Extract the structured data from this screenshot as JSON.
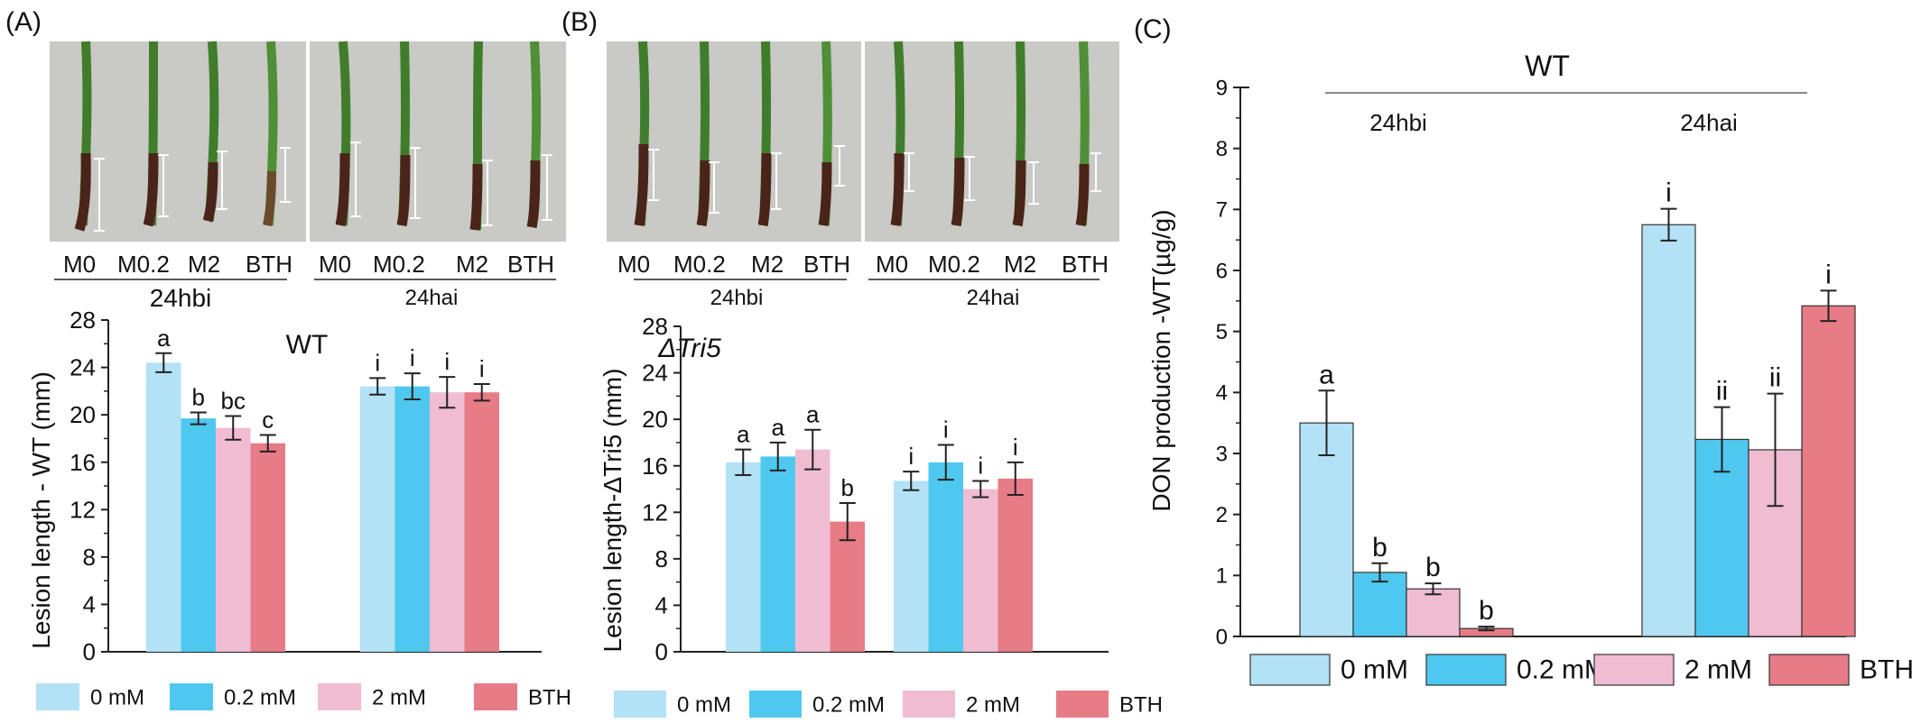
{
  "panels": {
    "A": "(A)",
    "B": "(B)",
    "C": "(C)"
  },
  "photos": {
    "A": {
      "left_labels": [
        "M0",
        "M0.2",
        "M2",
        "BTH"
      ],
      "right_labels": [
        "M0",
        "M0.2",
        "M2",
        "BTH"
      ],
      "left_group": "24hbi",
      "right_group": "24hai"
    },
    "B": {
      "left_labels": [
        "M0",
        "M0.2",
        "M2",
        "BTH"
      ],
      "right_labels": [
        "M0",
        "M0.2",
        "M2",
        "BTH"
      ],
      "left_group": "24hbi",
      "right_group": "24hai"
    }
  },
  "legend": [
    {
      "label": "0 mM",
      "color": "#b3e1f5"
    },
    {
      "label": "0.2 mM",
      "color": "#4fc8ef"
    },
    {
      "label": "2 mM",
      "color": "#f0bcd2"
    },
    {
      "label": "BTH",
      "color": "#e77b86"
    }
  ],
  "chart_data": [
    {
      "id": "A",
      "type": "bar",
      "title": "WT",
      "ylabel": "Lesion length - WT (mm)",
      "ylim": [
        0,
        28
      ],
      "yticks": [
        0,
        4,
        8,
        12,
        16,
        20,
        24,
        28
      ],
      "groups": [
        "24hbi",
        "24hai"
      ],
      "series": [
        {
          "name": "0 mM",
          "values": [
            24.4,
            22.4
          ],
          "errors": [
            0.8,
            0.7
          ],
          "letters": [
            "a",
            "i"
          ]
        },
        {
          "name": "0.2 mM",
          "values": [
            19.7,
            22.4
          ],
          "errors": [
            0.5,
            1.1
          ],
          "letters": [
            "b",
            "i"
          ]
        },
        {
          "name": "2 mM",
          "values": [
            18.9,
            21.9
          ],
          "errors": [
            1.0,
            1.3
          ],
          "letters": [
            "bc",
            "i"
          ]
        },
        {
          "name": "BTH",
          "values": [
            17.6,
            21.9
          ],
          "errors": [
            0.7,
            0.7
          ],
          "letters": [
            "c",
            "i"
          ]
        }
      ]
    },
    {
      "id": "B",
      "type": "bar",
      "title": "ΔTri5",
      "ylabel": "Lesion length-ΔTri5 (mm)",
      "ylim": [
        0,
        28
      ],
      "yticks": [
        0,
        4,
        8,
        12,
        16,
        20,
        24,
        28
      ],
      "groups": [
        "24hbi",
        "24hai"
      ],
      "series": [
        {
          "name": "0 mM",
          "values": [
            16.3,
            14.7
          ],
          "errors": [
            1.1,
            0.8
          ],
          "letters": [
            "a",
            "i"
          ]
        },
        {
          "name": "0.2 mM",
          "values": [
            16.8,
            16.3
          ],
          "errors": [
            1.2,
            1.5
          ],
          "letters": [
            "a",
            "i"
          ]
        },
        {
          "name": "2 mM",
          "values": [
            17.4,
            14.0
          ],
          "errors": [
            1.7,
            0.7
          ],
          "letters": [
            "a",
            "i"
          ]
        },
        {
          "name": "BTH",
          "values": [
            11.2,
            14.9
          ],
          "errors": [
            1.6,
            1.4
          ],
          "letters": [
            "b",
            "i"
          ]
        }
      ]
    },
    {
      "id": "C",
      "type": "bar",
      "title": "WT",
      "ylabel": "DON production -WT(µg/g)",
      "ylim": [
        0,
        9
      ],
      "yticks": [
        0,
        1,
        2,
        3,
        4,
        5,
        6,
        7,
        8,
        9
      ],
      "groups": [
        "24hbi",
        "24hai"
      ],
      "series": [
        {
          "name": "0 mM",
          "values": [
            3.5,
            6.75
          ],
          "errors": [
            0.53,
            0.26
          ],
          "letters": [
            "a",
            "i"
          ]
        },
        {
          "name": "0.2 mM",
          "values": [
            1.05,
            3.23
          ],
          "errors": [
            0.15,
            0.53
          ],
          "letters": [
            "b",
            "ii"
          ]
        },
        {
          "name": "2 mM",
          "values": [
            0.78,
            3.06
          ],
          "errors": [
            0.09,
            0.92
          ],
          "letters": [
            "b",
            "ii"
          ]
        },
        {
          "name": "BTH",
          "values": [
            0.13,
            5.42
          ],
          "errors": [
            0.03,
            0.25
          ],
          "letters": [
            "b",
            "i"
          ]
        }
      ]
    }
  ]
}
